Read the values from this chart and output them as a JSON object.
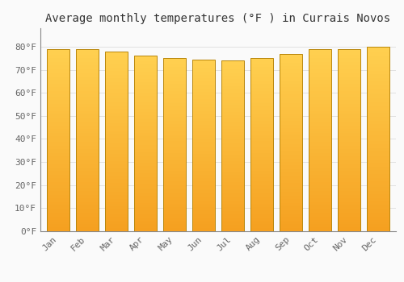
{
  "title": "Average monthly temperatures (°F ) in Currais Novos",
  "months": [
    "Jan",
    "Feb",
    "Mar",
    "Apr",
    "May",
    "Jun",
    "Jul",
    "Aug",
    "Sep",
    "Oct",
    "Nov",
    "Dec"
  ],
  "values": [
    79,
    79,
    78,
    76,
    75,
    74.5,
    74,
    75,
    77,
    79,
    79,
    80
  ],
  "bar_color_bottom": "#F5A020",
  "bar_color_top": "#FFD050",
  "bar_edge_color": "#B8860B",
  "background_color": "#FAFAFA",
  "grid_color": "#DDDDDD",
  "title_fontsize": 10,
  "tick_fontsize": 8,
  "ylim_max": 88,
  "yticks": [
    0,
    10,
    20,
    30,
    40,
    50,
    60,
    70,
    80
  ],
  "ytick_labels": [
    "0°F",
    "10°F",
    "20°F",
    "30°F",
    "40°F",
    "50°F",
    "60°F",
    "70°F",
    "80°F"
  ]
}
